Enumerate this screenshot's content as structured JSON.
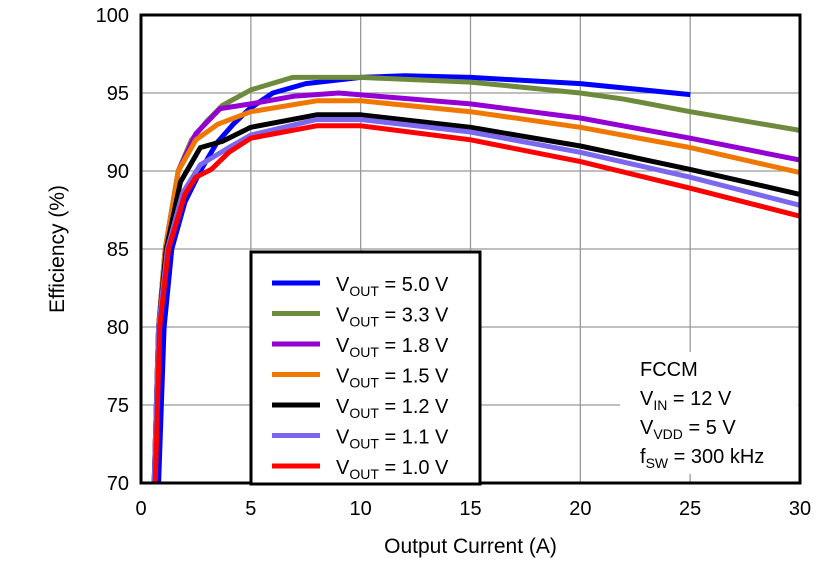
{
  "chart_data": {
    "type": "line",
    "xlabel": "Output Current (A)",
    "ylabel": "Efficiency (%)",
    "xlim": [
      0,
      30
    ],
    "ylim": [
      70,
      100
    ],
    "xticks": [
      "0",
      "5",
      "10",
      "15",
      "20",
      "25",
      "30"
    ],
    "yticks": [
      "70",
      "75",
      "80",
      "85",
      "90",
      "95",
      "100"
    ],
    "grid": true,
    "legend_position": "bottom-left-center",
    "series": [
      {
        "name": "VOUT = 5.0 V",
        "label_main": "V",
        "label_sub": "OUT",
        "label_rest": " = 5.0 V",
        "color": "#0000ff",
        "x": [
          0.8,
          1.05,
          1.4,
          2.0,
          2.7,
          3.45,
          4.2,
          4.95,
          6,
          7.5,
          10,
          12,
          15,
          20,
          25
        ],
        "y": [
          70,
          80,
          85,
          88,
          90,
          91.8,
          93,
          94,
          95,
          95.6,
          96,
          96.1,
          96,
          95.6,
          94.9
        ]
      },
      {
        "name": "VOUT = 3.3 V",
        "label_main": "V",
        "label_sub": "OUT",
        "label_rest": " = 3.3 V",
        "color": "#6e8b3d",
        "x": [
          0.6,
          0.8,
          1.1,
          1.7,
          2.3,
          3,
          3.7,
          5,
          6.9,
          10,
          15,
          20,
          22,
          25,
          30
        ],
        "y": [
          70,
          80,
          85,
          90,
          92,
          93.2,
          94.2,
          95.2,
          96,
          96,
          95.7,
          95,
          94.6,
          93.8,
          92.6
        ]
      },
      {
        "name": "VOUT = 1.8 V",
        "label_main": "V",
        "label_sub": "OUT",
        "label_rest": " = 1.8 V",
        "color": "#9400d3",
        "x": [
          0.6,
          0.8,
          1.1,
          1.7,
          2.5,
          3.6,
          5,
          7,
          9,
          15,
          20,
          25,
          30
        ],
        "y": [
          70,
          80,
          85,
          90,
          92.4,
          94,
          94.3,
          94.8,
          95,
          94.3,
          93.4,
          92.1,
          90.7
        ]
      },
      {
        "name": "VOUT = 1.5 V",
        "label_main": "V",
        "label_sub": "OUT",
        "label_rest": " = 1.5 V",
        "color": "#f07800",
        "x": [
          0.6,
          0.8,
          1.1,
          1.7,
          2.5,
          3.5,
          5,
          8,
          10,
          15,
          20,
          25,
          30
        ],
        "y": [
          70,
          80,
          85,
          90,
          92,
          93,
          93.8,
          94.5,
          94.5,
          93.8,
          92.8,
          91.5,
          89.9
        ]
      },
      {
        "name": "VOUT = 1.2 V",
        "label_main": "V",
        "label_sub": "OUT",
        "label_rest": " = 1.2 V",
        "color": "#000000",
        "x": [
          0.6,
          0.8,
          1.15,
          1.8,
          2.7,
          3.7,
          5,
          8,
          10,
          15,
          20,
          25,
          30
        ],
        "y": [
          70,
          80,
          85,
          89.3,
          91.5,
          91.9,
          92.8,
          93.6,
          93.6,
          92.8,
          91.6,
          90.1,
          88.5
        ]
      },
      {
        "name": "VOUT = 1.1 V",
        "label_main": "V",
        "label_sub": "OUT",
        "label_rest": " = 1.1 V",
        "color": "#7b68ee",
        "x": [
          0.6,
          0.8,
          1.2,
          1.9,
          2.7,
          4,
          5,
          8,
          10,
          15,
          20,
          25,
          30
        ],
        "y": [
          70,
          80,
          85,
          88.6,
          90.4,
          91.5,
          92.3,
          93.3,
          93.3,
          92.5,
          91.2,
          89.6,
          87.8
        ]
      },
      {
        "name": "VOUT = 1.0 V",
        "label_main": "V",
        "label_sub": "OUT",
        "label_rest": " = 1.0 V",
        "color": "#ff0000",
        "x": [
          0.65,
          0.85,
          1.25,
          2,
          2.5,
          3.2,
          4,
          5,
          8,
          10,
          15,
          20,
          25,
          30
        ],
        "y": [
          70,
          80,
          85,
          88.5,
          89.6,
          90.1,
          91.2,
          92.1,
          92.9,
          92.9,
          92,
          90.6,
          88.9,
          87.1
        ]
      }
    ],
    "annotation": [
      {
        "main": "FCCM",
        "sub": "",
        "rest": ""
      },
      {
        "main": "V",
        "sub": "IN",
        "rest": " = 12 V"
      },
      {
        "main": "V",
        "sub": "VDD",
        "rest": " = 5 V"
      },
      {
        "main": "f",
        "sub": "SW",
        "rest": " = 300 kHz"
      }
    ]
  }
}
